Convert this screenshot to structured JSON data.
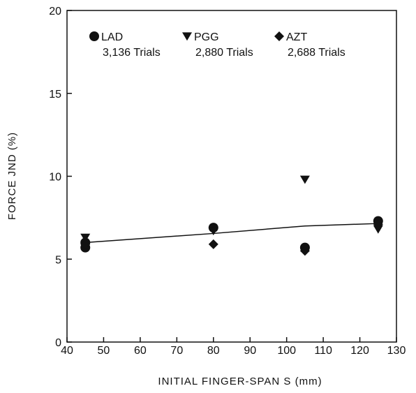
{
  "chart_data": {
    "type": "scatter",
    "xlabel": "INITIAL FINGER-SPAN S (mm)",
    "ylabel": "FORCE JND (%)",
    "xlim": [
      40,
      130
    ],
    "ylim": [
      0,
      20
    ],
    "xticks": [
      "40",
      "50",
      "60",
      "70",
      "80",
      "90",
      "100",
      "110",
      "120",
      "130"
    ],
    "yticks": [
      "0",
      "5",
      "10",
      "15",
      "20"
    ],
    "grid": false,
    "legend_position": "top",
    "series": [
      {
        "name": "LAD",
        "detail": "3,136 Trials",
        "marker": "circle",
        "points": [
          [
            45,
            5.7
          ],
          [
            45,
            6.0
          ],
          [
            80,
            6.9
          ],
          [
            105,
            5.7
          ],
          [
            125,
            7.3
          ]
        ]
      },
      {
        "name": "PGG",
        "detail": "2,880 Trials",
        "marker": "triangle-down",
        "points": [
          [
            45,
            6.3
          ],
          [
            80,
            6.7
          ],
          [
            105,
            9.8
          ],
          [
            125,
            6.8
          ]
        ]
      },
      {
        "name": "AZT",
        "detail": "2,688 Trials",
        "marker": "diamond",
        "points": [
          [
            45,
            5.9
          ],
          [
            80,
            5.9
          ],
          [
            105,
            5.5
          ],
          [
            125,
            7.1
          ]
        ]
      }
    ],
    "fit_line": {
      "x": [
        45,
        80,
        105,
        125
      ],
      "y": [
        6.0,
        6.55,
        7.0,
        7.15
      ]
    }
  }
}
